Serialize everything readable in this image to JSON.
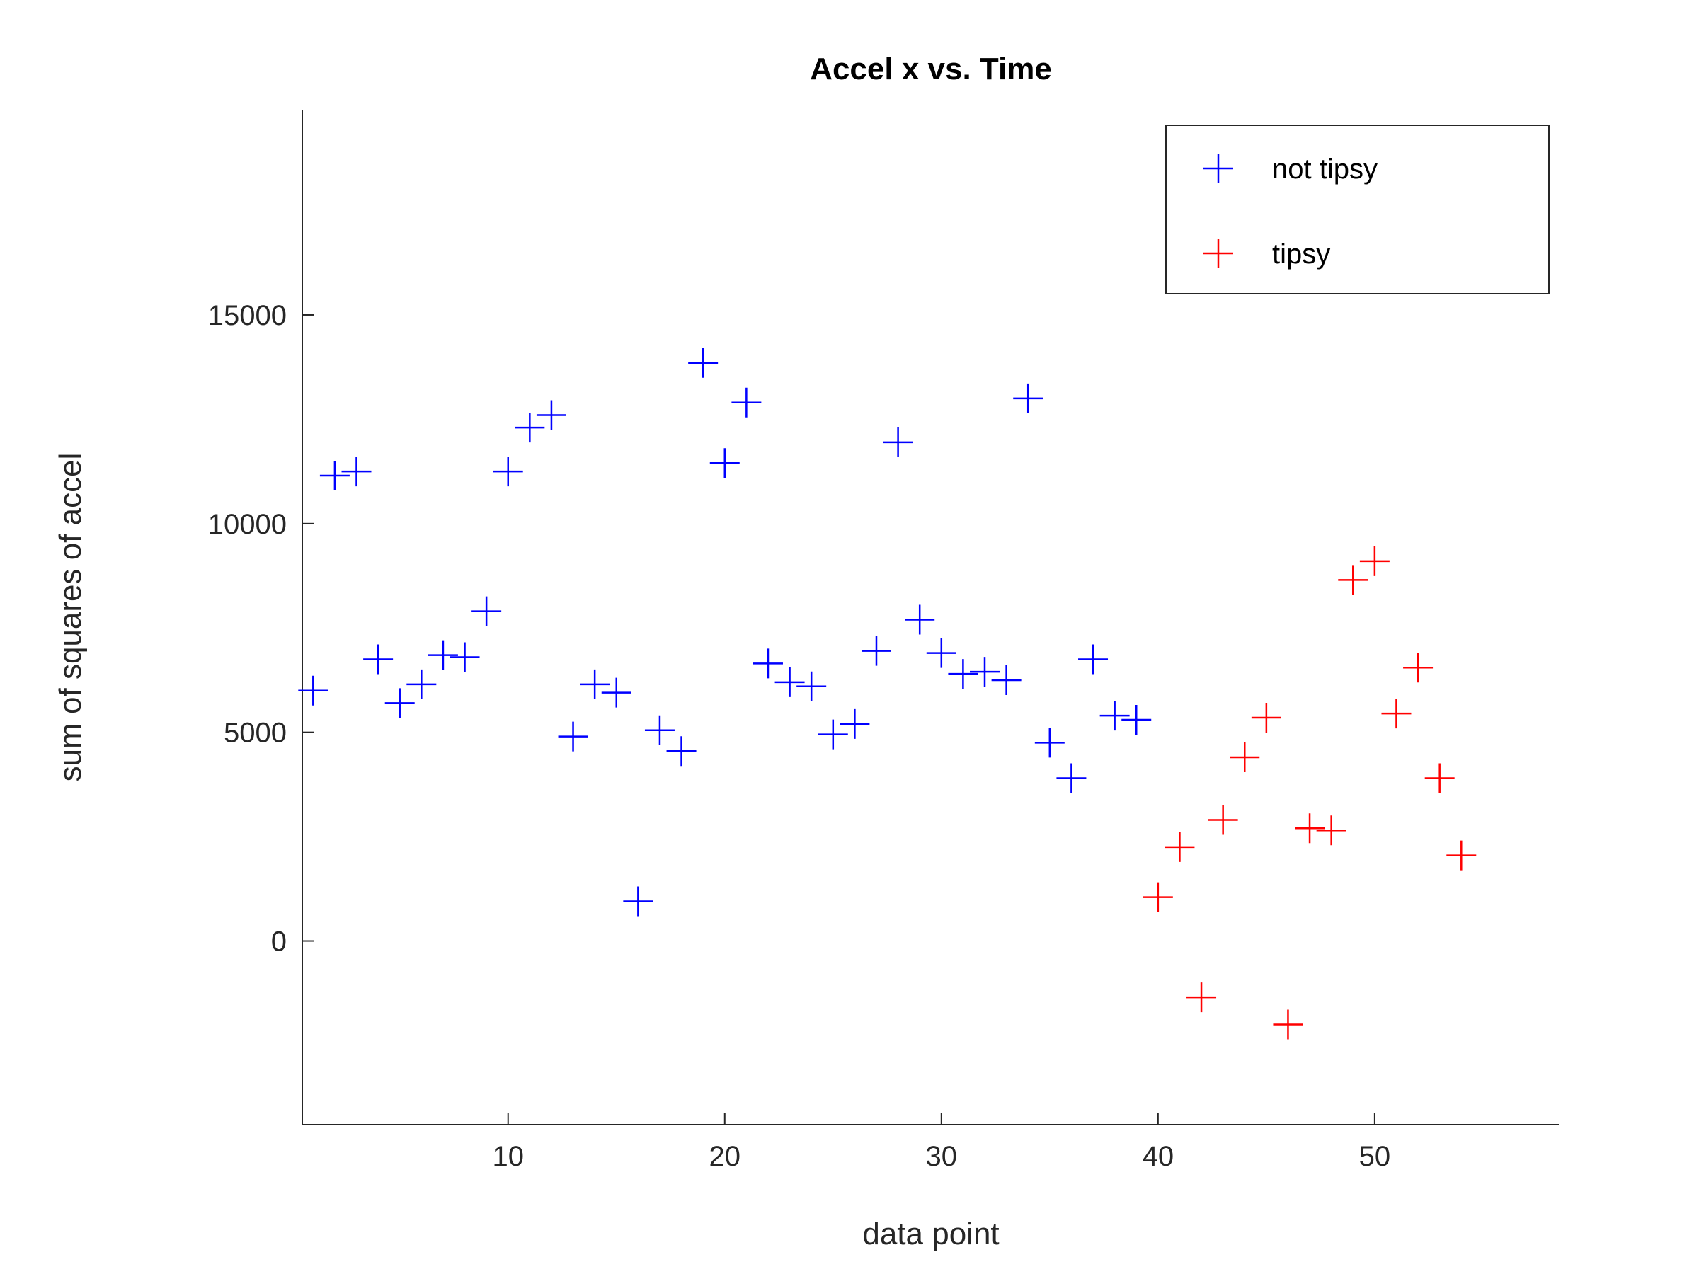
{
  "chart_data": {
    "type": "scatter",
    "title": "Accel x vs. Time",
    "xlabel": "data point",
    "ylabel": "sum of squares of accel",
    "xlim": [
      0.5,
      58.5
    ],
    "ylim": [
      -4400,
      19900
    ],
    "xticks": [
      10,
      20,
      30,
      40,
      50
    ],
    "yticks": [
      0,
      5000,
      10000,
      15000
    ],
    "grid": false,
    "legend_position": "top-right",
    "marker": "+",
    "series": [
      {
        "name": "not tipsy",
        "color": "#0000ff",
        "points": [
          [
            1,
            6000
          ],
          [
            2,
            11150
          ],
          [
            3,
            11250
          ],
          [
            4,
            6750
          ],
          [
            5,
            5700
          ],
          [
            6,
            6150
          ],
          [
            7,
            6850
          ],
          [
            8,
            6800
          ],
          [
            9,
            7900
          ],
          [
            10,
            11250
          ],
          [
            11,
            12300
          ],
          [
            12,
            12600
          ],
          [
            13,
            4900
          ],
          [
            14,
            6150
          ],
          [
            15,
            5950
          ],
          [
            16,
            950
          ],
          [
            17,
            5050
          ],
          [
            18,
            4550
          ],
          [
            19,
            13850
          ],
          [
            20,
            11450
          ],
          [
            21,
            12900
          ],
          [
            22,
            6650
          ],
          [
            23,
            6200
          ],
          [
            24,
            6100
          ],
          [
            25,
            4950
          ],
          [
            26,
            5200
          ],
          [
            27,
            6950
          ],
          [
            28,
            11950
          ],
          [
            29,
            7700
          ],
          [
            30,
            6900
          ],
          [
            31,
            6400
          ],
          [
            32,
            6450
          ],
          [
            33,
            6250
          ],
          [
            34,
            13000
          ],
          [
            35,
            4750
          ],
          [
            36,
            3900
          ],
          [
            37,
            6750
          ],
          [
            38,
            5400
          ],
          [
            39,
            5300
          ]
        ]
      },
      {
        "name": "tipsy",
        "color": "#ff0000",
        "points": [
          [
            40,
            1050
          ],
          [
            41,
            2250
          ],
          [
            42,
            -1350
          ],
          [
            43,
            2900
          ],
          [
            44,
            4400
          ],
          [
            45,
            5350
          ],
          [
            46,
            -2000
          ],
          [
            47,
            2700
          ],
          [
            48,
            2650
          ],
          [
            49,
            8650
          ],
          [
            50,
            9100
          ],
          [
            51,
            5450
          ],
          [
            52,
            6550
          ],
          [
            53,
            3900
          ],
          [
            54,
            2050
          ]
        ]
      }
    ]
  }
}
